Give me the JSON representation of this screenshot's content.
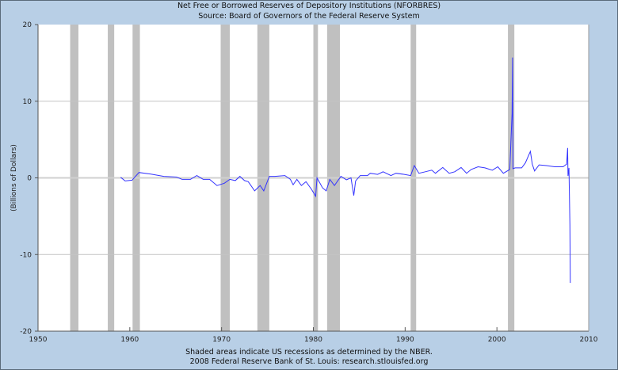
{
  "chart_data": {
    "type": "line",
    "title": "Net Free or Borrowed Reserves of Depository Institutions (NFORBRES)",
    "subtitle": "Source: Board of Governors of the Federal Reserve System",
    "xlabel": "",
    "ylabel": "(Billions of Dollars)",
    "xlim": [
      1950,
      2010
    ],
    "ylim": [
      -20,
      20
    ],
    "x_ticks": [
      1950,
      1960,
      1970,
      1980,
      1990,
      2000,
      2010
    ],
    "y_ticks": [
      -20,
      -10,
      0,
      10,
      20
    ],
    "grid": "horizontal",
    "line_color": "#3333ff",
    "recession_color": "#c0c0c0",
    "plot_background": "#ffffff",
    "frame_background": "#b8cfe6",
    "recessions": [
      [
        1953.5,
        1954.4
      ],
      [
        1957.6,
        1958.3
      ],
      [
        1960.3,
        1961.1
      ],
      [
        1969.9,
        1970.9
      ],
      [
        1973.9,
        1975.2
      ],
      [
        1980.0,
        1980.5
      ],
      [
        1981.5,
        1982.9
      ],
      [
        1990.6,
        1991.2
      ],
      [
        2001.2,
        2001.9
      ]
    ],
    "series": [
      {
        "points": [
          [
            1959.0,
            0.07
          ],
          [
            1959.5,
            -0.4
          ],
          [
            1960.25,
            -0.3
          ],
          [
            1961.0,
            0.7
          ],
          [
            1962.3,
            0.5
          ],
          [
            1963.7,
            0.2
          ],
          [
            1965.1,
            0.1
          ],
          [
            1965.7,
            -0.2
          ],
          [
            1966.6,
            -0.2
          ],
          [
            1967.3,
            0.3
          ],
          [
            1968.0,
            -0.2
          ],
          [
            1968.7,
            -0.2
          ],
          [
            1969.5,
            -1.0
          ],
          [
            1970.3,
            -0.7
          ],
          [
            1970.9,
            -0.2
          ],
          [
            1971.5,
            -0.35
          ],
          [
            1972.0,
            0.2
          ],
          [
            1972.5,
            -0.35
          ],
          [
            1972.9,
            -0.5
          ],
          [
            1973.6,
            -1.7
          ],
          [
            1974.2,
            -1.0
          ],
          [
            1974.6,
            -1.7
          ],
          [
            1975.2,
            0.2
          ],
          [
            1975.8,
            0.2
          ],
          [
            1976.9,
            0.3
          ],
          [
            1977.5,
            -0.2
          ],
          [
            1977.8,
            -0.9
          ],
          [
            1978.2,
            -0.2
          ],
          [
            1978.7,
            -1.0
          ],
          [
            1979.2,
            -0.5
          ],
          [
            1979.8,
            -1.5
          ],
          [
            1980.25,
            -2.4
          ],
          [
            1980.4,
            0.0
          ],
          [
            1981.0,
            -1.3
          ],
          [
            1981.4,
            -1.7
          ],
          [
            1981.8,
            -0.2
          ],
          [
            1982.3,
            -1.0
          ],
          [
            1983.0,
            0.2
          ],
          [
            1983.6,
            -0.25
          ],
          [
            1984.1,
            0.0
          ],
          [
            1984.4,
            -2.3
          ],
          [
            1984.6,
            -0.4
          ],
          [
            1985.1,
            0.3
          ],
          [
            1985.9,
            0.3
          ],
          [
            1986.2,
            0.6
          ],
          [
            1987.0,
            0.45
          ],
          [
            1987.6,
            0.8
          ],
          [
            1988.45,
            0.3
          ],
          [
            1989.0,
            0.6
          ],
          [
            1989.9,
            0.45
          ],
          [
            1990.6,
            0.3
          ],
          [
            1991.0,
            1.6
          ],
          [
            1991.5,
            0.6
          ],
          [
            1992.2,
            0.8
          ],
          [
            1992.9,
            1.0
          ],
          [
            1993.3,
            0.6
          ],
          [
            1994.1,
            1.35
          ],
          [
            1994.8,
            0.6
          ],
          [
            1995.4,
            0.8
          ],
          [
            1996.1,
            1.35
          ],
          [
            1996.7,
            0.6
          ],
          [
            1997.2,
            1.1
          ],
          [
            1997.95,
            1.45
          ],
          [
            1998.7,
            1.3
          ],
          [
            1999.5,
            1.0
          ],
          [
            2000.1,
            1.45
          ],
          [
            2000.7,
            0.6
          ],
          [
            2001.4,
            1.1
          ],
          [
            2001.65,
            8.4
          ],
          [
            2001.7,
            15.7
          ],
          [
            2001.75,
            1.2
          ],
          [
            2002.0,
            1.3
          ],
          [
            2002.7,
            1.3
          ],
          [
            2003.1,
            1.95
          ],
          [
            2003.65,
            3.45
          ],
          [
            2003.85,
            1.8
          ],
          [
            2004.1,
            0.9
          ],
          [
            2004.6,
            1.7
          ],
          [
            2005.4,
            1.6
          ],
          [
            2006.3,
            1.45
          ],
          [
            2007.2,
            1.45
          ],
          [
            2007.6,
            1.8
          ],
          [
            2007.7,
            3.9
          ],
          [
            2007.75,
            0.25
          ],
          [
            2007.85,
            1.3
          ],
          [
            2007.95,
            -6.1
          ],
          [
            2008.0,
            -13.7
          ]
        ]
      }
    ],
    "notes": [
      "Shaded areas indicate US recessions as determined by the NBER.",
      "2008 Federal Reserve Bank of St. Louis: research.stlouisfed.org"
    ]
  }
}
